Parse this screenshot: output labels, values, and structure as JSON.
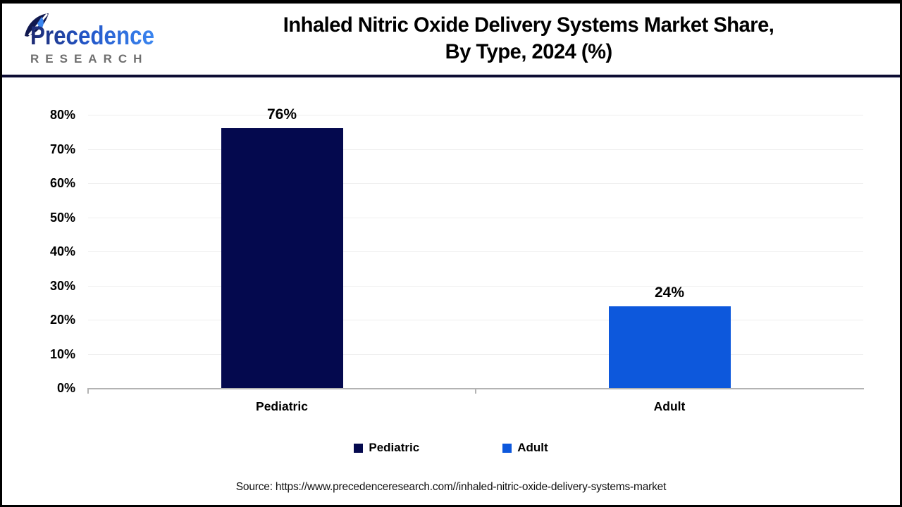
{
  "header": {
    "logo": {
      "brand": "Precedence",
      "subtext": "RESEARCH"
    },
    "title_line1": "Inhaled Nitric Oxide Delivery Systems Market Share,",
    "title_line2": "By Type, 2024 (%)"
  },
  "chart_data": {
    "type": "bar",
    "title": "Inhaled Nitric Oxide Delivery Systems Market Share, By Type, 2024 (%)",
    "categories": [
      "Pediatric",
      "Adult"
    ],
    "values": [
      76,
      24
    ],
    "value_labels": [
      "76%",
      "24%"
    ],
    "bar_colors": [
      "#04094E",
      "#0D58DC"
    ],
    "xlabel": "",
    "ylabel": "",
    "ylim": [
      0,
      80
    ],
    "ytick_step": 10,
    "ytick_labels": [
      "0%",
      "10%",
      "20%",
      "30%",
      "40%",
      "50%",
      "60%",
      "70%",
      "80%"
    ],
    "grid": true,
    "legend_position": "bottom",
    "legend": [
      {
        "label": "Pediatric",
        "color": "#04094E"
      },
      {
        "label": "Adult",
        "color": "#0D58DC"
      }
    ]
  },
  "source": {
    "text": "Source: https://www.precedenceresearch.com//inhaled-nitric-oxide-delivery-systems-market"
  },
  "colors": {
    "navy": "#04094E",
    "blue": "#0D58DC",
    "separator": "#0c0c33",
    "gridline": "#efefef",
    "axis": "#b3b3b3",
    "logo_gray": "#6e6e6e"
  }
}
